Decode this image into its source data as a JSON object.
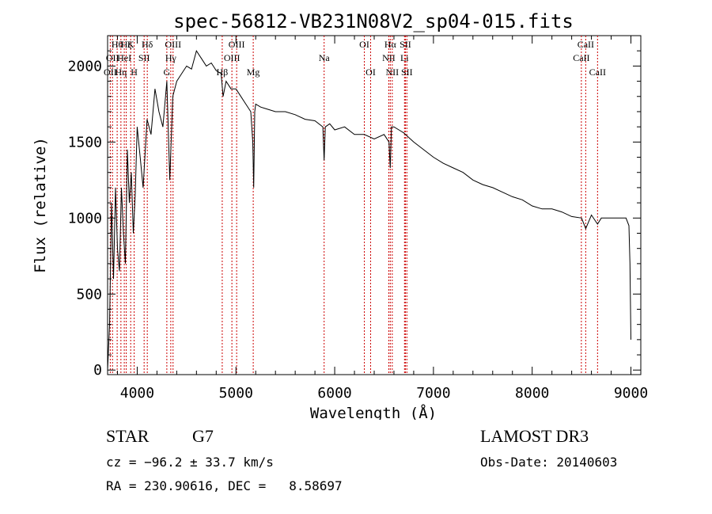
{
  "chart_data": {
    "type": "line",
    "title": "spec-56812-VB231N08V2_sp04-015.fits",
    "xlabel": "Wavelength (Å)",
    "ylabel": "Flux (relative)",
    "xlim": [
      3700,
      9100
    ],
    "ylim": [
      -30,
      2200
    ],
    "x_ticks": [
      4000,
      5000,
      6000,
      7000,
      8000,
      9000
    ],
    "y_ticks": [
      0,
      500,
      1000,
      1500,
      2000
    ],
    "series": [
      {
        "x": [
          3700,
          3720,
          3740,
          3760,
          3780,
          3800,
          3820,
          3840,
          3860,
          3880,
          3900,
          3920,
          3940,
          3960,
          3980,
          4000,
          4030,
          4060,
          4100,
          4140,
          4180,
          4220,
          4260,
          4300,
          4330,
          4360,
          4400,
          4450,
          4500,
          4550,
          4600,
          4650,
          4700,
          4750,
          4800,
          4850,
          4870,
          4900,
          4950,
          5000,
          5050,
          5100,
          5150,
          5170,
          5180,
          5190,
          5200,
          5250,
          5300,
          5400,
          5500,
          5600,
          5700,
          5800,
          5880,
          5893,
          5905,
          5950,
          6000,
          6100,
          6200,
          6300,
          6400,
          6500,
          6550,
          6563,
          6575,
          6600,
          6650,
          6700,
          6750,
          6800,
          6900,
          7000,
          7100,
          7200,
          7300,
          7400,
          7500,
          7600,
          7700,
          7800,
          7900,
          8000,
          8100,
          8200,
          8300,
          8400,
          8500,
          8542,
          8600,
          8662,
          8700,
          8800,
          8900,
          8950,
          8980,
          8990,
          9000
        ],
        "y": [
          0,
          300,
          1100,
          600,
          1200,
          800,
          650,
          1200,
          900,
          700,
          1450,
          1100,
          1300,
          900,
          1150,
          1600,
          1400,
          1200,
          1650,
          1550,
          1850,
          1700,
          1600,
          1900,
          1250,
          1800,
          1900,
          1950,
          2000,
          1980,
          2100,
          2050,
          2000,
          2020,
          1970,
          1950,
          1800,
          1900,
          1850,
          1850,
          1800,
          1750,
          1700,
          1500,
          1200,
          1700,
          1750,
          1730,
          1720,
          1700,
          1700,
          1680,
          1650,
          1640,
          1600,
          1380,
          1600,
          1620,
          1580,
          1600,
          1550,
          1550,
          1520,
          1550,
          1500,
          1330,
          1600,
          1600,
          1580,
          1560,
          1530,
          1500,
          1450,
          1400,
          1360,
          1330,
          1300,
          1250,
          1220,
          1200,
          1170,
          1140,
          1120,
          1080,
          1060,
          1060,
          1040,
          1010,
          1000,
          930,
          1020,
          960,
          1000,
          1000,
          1000,
          1000,
          950,
          700,
          200
        ]
      }
    ],
    "lines": [
      {
        "wavelength": 3727,
        "label": "OII",
        "row": 3
      },
      {
        "wavelength": 3750,
        "label": "OII",
        "row": 2
      },
      {
        "wavelength": 3797,
        "label": "Hθ",
        "row": 1
      },
      {
        "wavelength": 3835,
        "label": "Hη",
        "row": 3
      },
      {
        "wavelength": 3869,
        "label": "HeI",
        "row": 2
      },
      {
        "wavelength": 3889,
        "label": "Hζ",
        "row": 1
      },
      {
        "wavelength": 3934,
        "label": "K",
        "row": 1
      },
      {
        "wavelength": 3969,
        "label": "H",
        "row": 3
      },
      {
        "wavelength": 4070,
        "label": "SII",
        "row": 2
      },
      {
        "wavelength": 4102,
        "label": "Hδ",
        "row": 1
      },
      {
        "wavelength": 4300,
        "label": "G",
        "row": 3
      },
      {
        "wavelength": 4340,
        "label": "Hγ",
        "row": 2
      },
      {
        "wavelength": 4363,
        "label": "OIII",
        "row": 1
      },
      {
        "wavelength": 4861,
        "label": "Hβ",
        "row": 3
      },
      {
        "wavelength": 4959,
        "label": "OIII",
        "row": 2
      },
      {
        "wavelength": 5007,
        "label": "OIII",
        "row": 1
      },
      {
        "wavelength": 5175,
        "label": "Mg",
        "row": 3
      },
      {
        "wavelength": 5893,
        "label": "Na",
        "row": 2
      },
      {
        "wavelength": 6300,
        "label": "OI",
        "row": 1
      },
      {
        "wavelength": 6364,
        "label": "OI",
        "row": 3
      },
      {
        "wavelength": 6548,
        "label": "NII",
        "row": 2
      },
      {
        "wavelength": 6563,
        "label": "Hα",
        "row": 1
      },
      {
        "wavelength": 6583,
        "label": "NII",
        "row": 3
      },
      {
        "wavelength": 6707,
        "label": "Li",
        "row": 2
      },
      {
        "wavelength": 6716,
        "label": "SII",
        "row": 1
      },
      {
        "wavelength": 6731,
        "label": "SII",
        "row": 3
      },
      {
        "wavelength": 8498,
        "label": "CaII",
        "row": 2
      },
      {
        "wavelength": 8542,
        "label": "CaII",
        "row": 1
      },
      {
        "wavelength": 8662,
        "label": "CaII",
        "row": 3
      }
    ],
    "line_color": "#cc0000",
    "spectrum_color": "#000000"
  },
  "footer": {
    "object_class": "STAR",
    "subclass": "G7",
    "survey": "LAMOST DR3",
    "cz": "cz = −96.2 ± 33.7 km/s",
    "obs_date": "Obs-Date: 20140603",
    "coords": "RA = 230.90616, DEC =   8.58697"
  }
}
